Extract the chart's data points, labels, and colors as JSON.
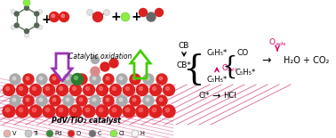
{
  "bg_color": "#ffffff",
  "catalyst_label": "PdV/TiO₂ catalyst",
  "oxidation_label": "Catalytic oxidation",
  "legend": [
    {
      "symbol": "V",
      "color": "#e8b0a8",
      "edge": "#999999"
    },
    {
      "symbol": "Ti",
      "color": "#c8c8c8",
      "edge": "#999999"
    },
    {
      "symbol": "Pd",
      "color": "#3a8a3a",
      "edge": "#999999"
    },
    {
      "symbol": "O",
      "color": "#e02020",
      "edge": "#999999"
    },
    {
      "symbol": "C",
      "color": "#707070",
      "edge": "#999999"
    },
    {
      "symbol": "Cl",
      "color": "#88ee44",
      "edge": "#999999"
    },
    {
      "symbol": "H",
      "color": "#f5f5f5",
      "edge": "#999999"
    }
  ],
  "pink": "#cc0066",
  "purple": "#9933bb",
  "green_arrow": "#44cc00",
  "black": "#000000",
  "sphere_red": "#dd2020",
  "sphere_gray": "#aaaaaa",
  "sphere_green": "#2d7a2d"
}
